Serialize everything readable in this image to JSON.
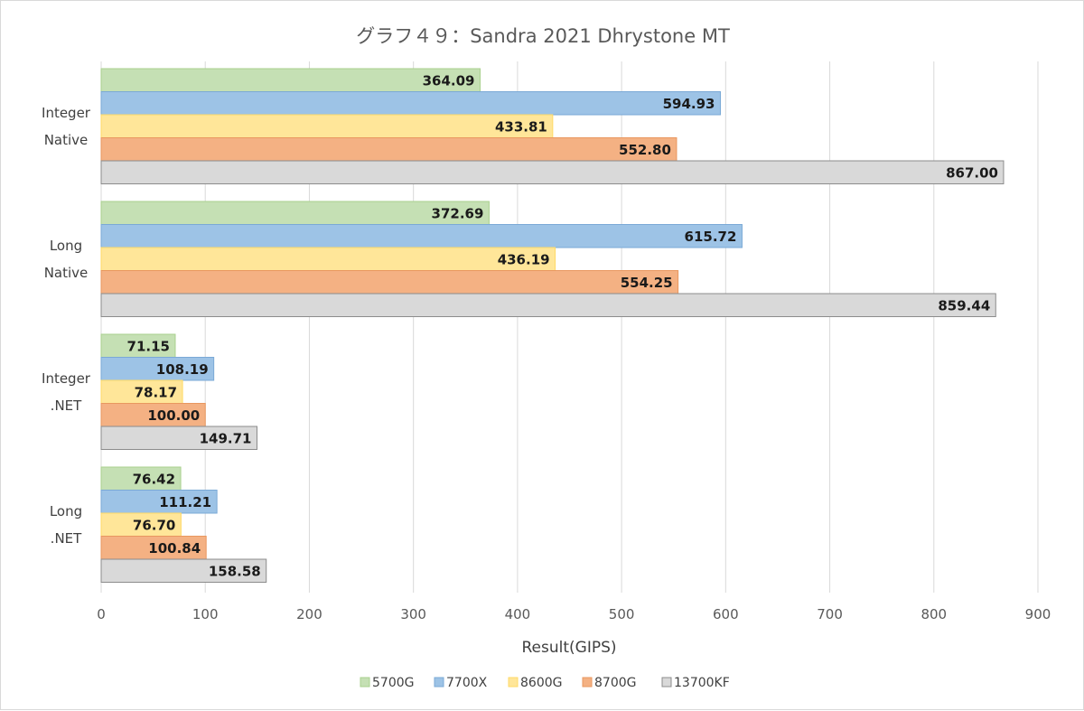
{
  "chart_data": {
    "type": "bar",
    "orientation": "horizontal",
    "title": "グラフ４９：Sandra 2021 Dhrystone MT",
    "xlabel": "Result(GIPS)",
    "ylabel": "",
    "xlim": [
      0,
      900
    ],
    "x_ticks": [
      "0",
      "100",
      "200",
      "300",
      "400",
      "500",
      "600",
      "700",
      "800",
      "900"
    ],
    "grid": "vertical",
    "legend_position": "bottom",
    "categories": [
      {
        "line1": "Integer",
        "line2": "Native"
      },
      {
        "line1": "Long",
        "line2": "Native"
      },
      {
        "line1": "Integer",
        "line2": ".NET"
      },
      {
        "line1": "Long",
        "line2": ".NET"
      }
    ],
    "series": [
      {
        "name": "5700G",
        "color": "#c5e0b4",
        "stroke": "#a9d18e",
        "values": [
          364.09,
          372.69,
          71.15,
          76.42
        ],
        "labels": [
          "364.09",
          "372.69",
          "71.15",
          "76.42"
        ]
      },
      {
        "name": "7700X",
        "color": "#9dc3e6",
        "stroke": "#7aa9d6",
        "values": [
          594.93,
          615.72,
          108.19,
          111.21
        ],
        "labels": [
          "594.93",
          "615.72",
          "108.19",
          "111.21"
        ]
      },
      {
        "name": "8600G",
        "color": "#ffe699",
        "stroke": "#ffd966",
        "values": [
          433.81,
          436.19,
          78.17,
          76.7
        ],
        "labels": [
          "433.81",
          "436.19",
          "78.17",
          "76.70"
        ]
      },
      {
        "name": "8700G",
        "color": "#f4b183",
        "stroke": "#e9975f",
        "values": [
          552.8,
          554.25,
          100.0,
          100.84
        ],
        "labels": [
          "552.80",
          "554.25",
          "100.00",
          "100.84"
        ]
      },
      {
        "name": "13700KF",
        "color": "#d9d9d9",
        "stroke": "#8c8c8c",
        "values": [
          867.0,
          859.44,
          149.71,
          158.58
        ],
        "labels": [
          "867.00",
          "859.44",
          "149.71",
          "158.58"
        ]
      }
    ]
  }
}
